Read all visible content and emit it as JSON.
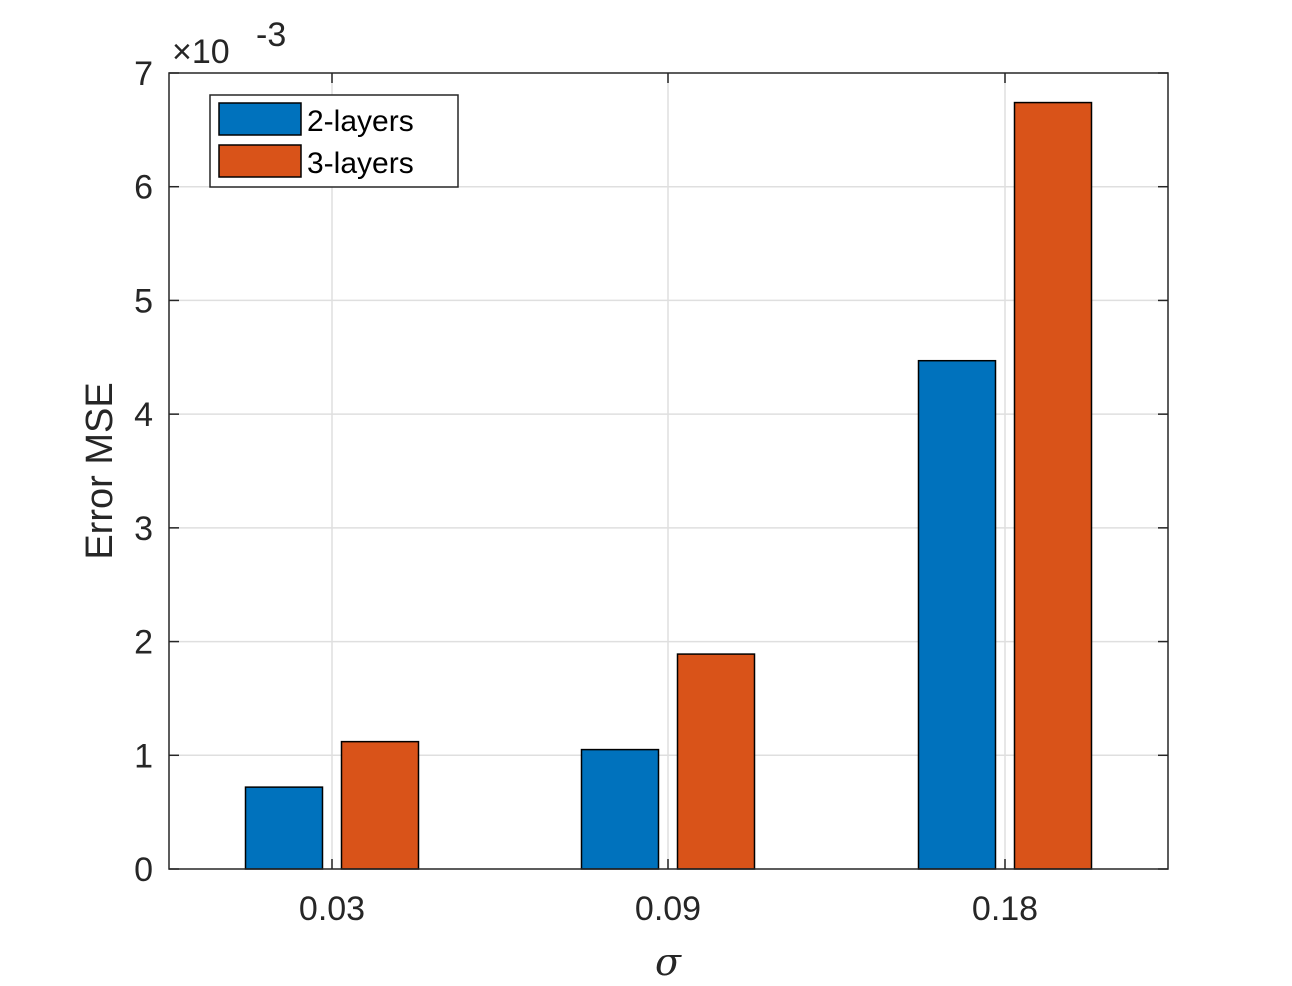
{
  "chart_data": {
    "type": "bar",
    "categories": [
      "0.03",
      "0.09",
      "0.18"
    ],
    "series": [
      {
        "name": "2-layers",
        "color": "#0072BD",
        "values": [
          0.72,
          1.05,
          4.47
        ]
      },
      {
        "name": "3-layers",
        "color": "#D95319",
        "values": [
          1.12,
          1.89,
          6.74
        ]
      }
    ],
    "title": "",
    "xlabel": "σ",
    "ylabel": "Error MSE",
    "ylim": [
      0,
      7
    ],
    "yticks": [
      "0",
      "1",
      "2",
      "3",
      "4",
      "5",
      "6",
      "7"
    ],
    "y_exponent": {
      "base": "×10",
      "power": "-3"
    },
    "grid": true,
    "legend_position": "top-left"
  }
}
